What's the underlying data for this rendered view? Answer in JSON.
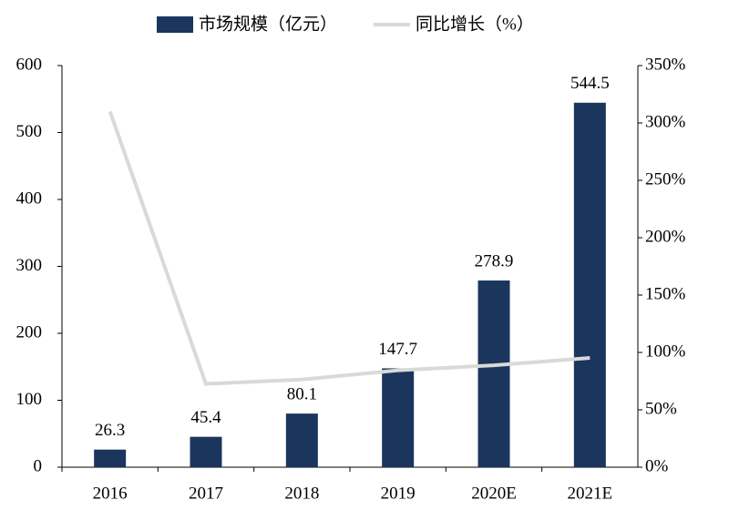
{
  "chart_data": {
    "type": "bar",
    "categories": [
      "2016",
      "2017",
      "2018",
      "2019",
      "2020E",
      "2021E"
    ],
    "series": [
      {
        "name": "市场规模（亿元）",
        "color": "#1b365d",
        "values": [
          26.3,
          45.4,
          80.1,
          147.7,
          278.9,
          544.5
        ]
      },
      {
        "name": "同比增长（%）",
        "color": "#d9d9d9",
        "axis": "y2",
        "type": "line",
        "values": [
          310,
          72.6,
          76.4,
          84.4,
          88.8,
          95.2
        ]
      }
    ],
    "ylim": [
      0,
      600
    ],
    "yticks": [
      0,
      100,
      200,
      300,
      400,
      500,
      600
    ],
    "y2lim": [
      0,
      350
    ],
    "y2ticks": [
      {
        "value": 0,
        "label": "0%"
      },
      {
        "value": 50,
        "label": "50%"
      },
      {
        "value": 100,
        "label": "100%"
      },
      {
        "value": 150,
        "label": "150%"
      },
      {
        "value": 200,
        "label": "200%"
      },
      {
        "value": 250,
        "label": "250%"
      },
      {
        "value": 300,
        "label": "300%"
      },
      {
        "value": 350,
        "label": "350%"
      }
    ],
    "legend": "top",
    "grid": false
  }
}
